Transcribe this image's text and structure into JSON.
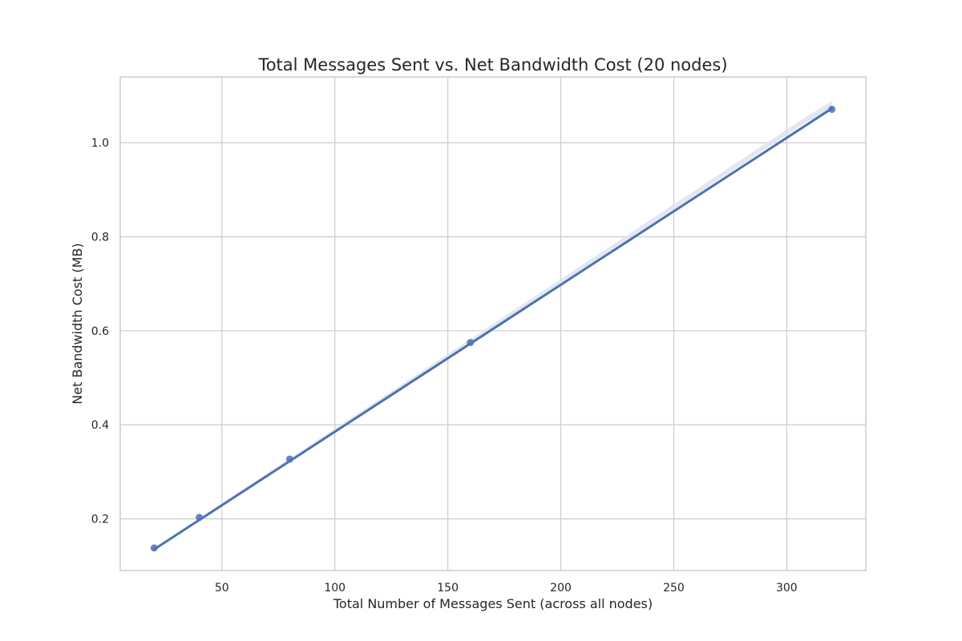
{
  "chart_data": {
    "type": "scatter",
    "title": "Total Messages Sent vs. Net Bandwidth Cost (20 nodes)",
    "xlabel": "Total Number of Messages Sent (across all nodes)",
    "ylabel": "Net Bandwidth Cost (MB)",
    "xlim": [
      5,
      335
    ],
    "ylim": [
      0.09,
      1.14
    ],
    "x_ticks": [
      50,
      100,
      150,
      200,
      250,
      300
    ],
    "y_ticks": [
      0.2,
      0.4,
      0.6,
      0.8,
      1.0
    ],
    "x_tick_labels": [
      "50",
      "100",
      "150",
      "200",
      "250",
      "300"
    ],
    "y_tick_labels": [
      "0.2",
      "0.4",
      "0.6",
      "0.8",
      "1.0"
    ],
    "grid": true,
    "series": [
      {
        "x": [
          20,
          40,
          80,
          160,
          320
        ],
        "y": [
          0.138,
          0.203,
          0.327,
          0.575,
          1.071
        ],
        "color": "#4c72b0"
      }
    ],
    "regression_line": {
      "x": [
        20,
        320
      ],
      "y": [
        0.135,
        1.073
      ],
      "color": "#4c72b0",
      "confidence_band": true,
      "band_color": "#dde3ef"
    }
  }
}
